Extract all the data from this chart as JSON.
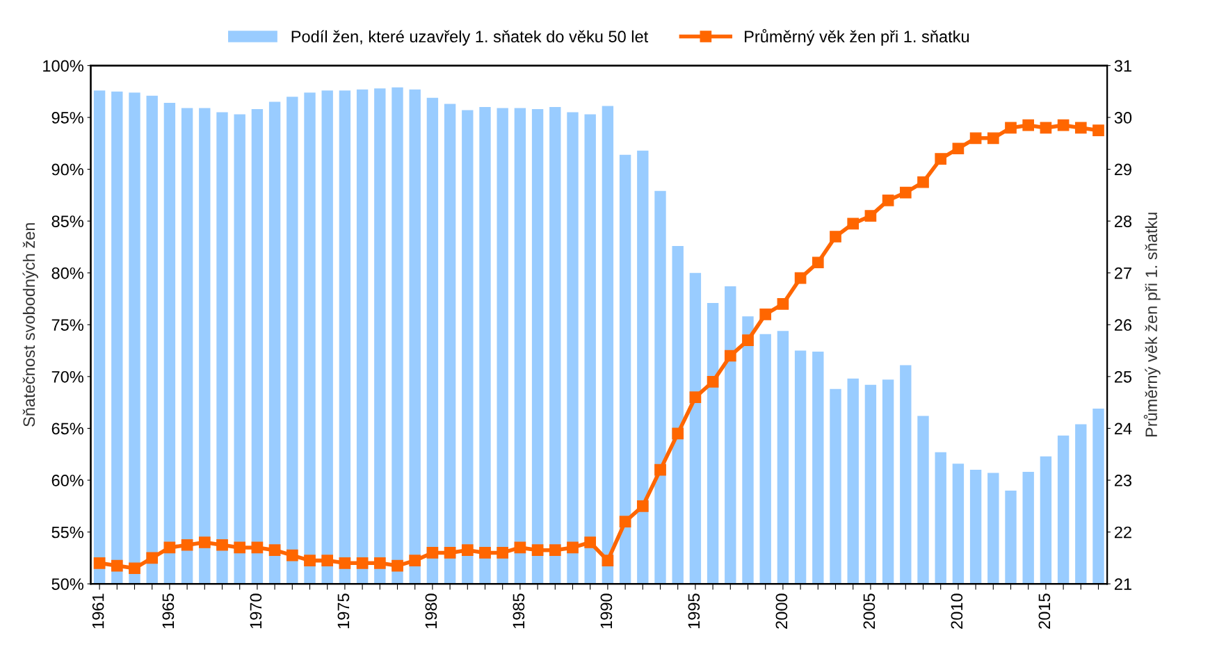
{
  "chart_data": {
    "type": "bar",
    "ylabel": "Sňatečnost svobodných žen",
    "y2label": "Průměrný věk žen při 1. sňatku",
    "categories": [
      "1961",
      null,
      null,
      null,
      "1965",
      null,
      null,
      null,
      null,
      "1970",
      null,
      null,
      null,
      null,
      "1975",
      null,
      null,
      null,
      null,
      "1980",
      null,
      null,
      null,
      null,
      "1985",
      null,
      null,
      null,
      null,
      "1990",
      null,
      null,
      null,
      null,
      "1995",
      null,
      null,
      null,
      null,
      "2000",
      null,
      null,
      null,
      null,
      "2005",
      null,
      null,
      null,
      null,
      "2010",
      null,
      null,
      null,
      null,
      "2015",
      null,
      null,
      null
    ],
    "series": [
      {
        "name": "Podíl žen, které uzavřely 1. sňatek do věku 50 let",
        "color": "#99ccff",
        "values": [
          97.6,
          97.5,
          97.4,
          97.1,
          96.4,
          95.9,
          95.9,
          95.5,
          95.3,
          95.8,
          96.5,
          97.0,
          97.4,
          97.6,
          97.6,
          97.7,
          97.8,
          97.9,
          97.7,
          96.9,
          96.3,
          95.7,
          96.0,
          95.9,
          95.9,
          95.8,
          96.0,
          95.5,
          95.3,
          96.1,
          91.4,
          91.8,
          87.9,
          82.6,
          80.0,
          77.1,
          78.7,
          75.8,
          74.1,
          74.4,
          72.5,
          72.4,
          68.8,
          69.8,
          69.2,
          69.7,
          71.1,
          66.2,
          62.7,
          61.6,
          61.0,
          60.7,
          59.0,
          60.8,
          62.3,
          64.3,
          65.4,
          66.9
        ]
      },
      {
        "name": "Průměrný věk žen při 1. sňatku",
        "type": "line",
        "axis": "y2",
        "color": "#ff6600",
        "marker": "square",
        "line_style": "solid",
        "values": [
          21.4,
          21.35,
          21.3,
          21.5,
          21.7,
          21.75,
          21.8,
          21.75,
          21.7,
          21.7,
          21.65,
          21.55,
          21.45,
          21.45,
          21.4,
          21.4,
          21.4,
          21.35,
          21.45,
          21.6,
          21.6,
          21.65,
          21.6,
          21.6,
          21.7,
          21.65,
          21.65,
          21.7,
          21.8,
          21.45,
          22.2,
          22.5,
          23.2,
          23.9,
          24.6,
          24.9,
          25.4,
          25.7,
          26.2,
          26.4,
          26.9,
          27.2,
          27.7,
          27.95,
          28.1,
          28.4,
          28.55,
          28.75,
          29.2,
          29.4,
          29.6,
          29.6,
          29.8,
          29.85,
          29.8,
          29.85,
          29.8,
          29.75
        ]
      }
    ],
    "ylim": [
      50,
      100
    ],
    "yticks": [
      {
        "value": 50,
        "label": "50%"
      },
      {
        "value": 55,
        "label": "55%"
      },
      {
        "value": 60,
        "label": "60%"
      },
      {
        "value": 65,
        "label": "65%"
      },
      {
        "value": 70,
        "label": "70%"
      },
      {
        "value": 75,
        "label": "75%"
      },
      {
        "value": 80,
        "label": "80%"
      },
      {
        "value": 85,
        "label": "85%"
      },
      {
        "value": 90,
        "label": "90%"
      },
      {
        "value": 95,
        "label": "95%"
      },
      {
        "value": 100,
        "label": "100%"
      }
    ],
    "y2lim": [
      21,
      31
    ],
    "y2ticks": [
      21,
      22,
      23,
      24,
      25,
      26,
      27,
      28,
      29,
      30,
      31
    ],
    "grid": false,
    "legend": "top"
  }
}
